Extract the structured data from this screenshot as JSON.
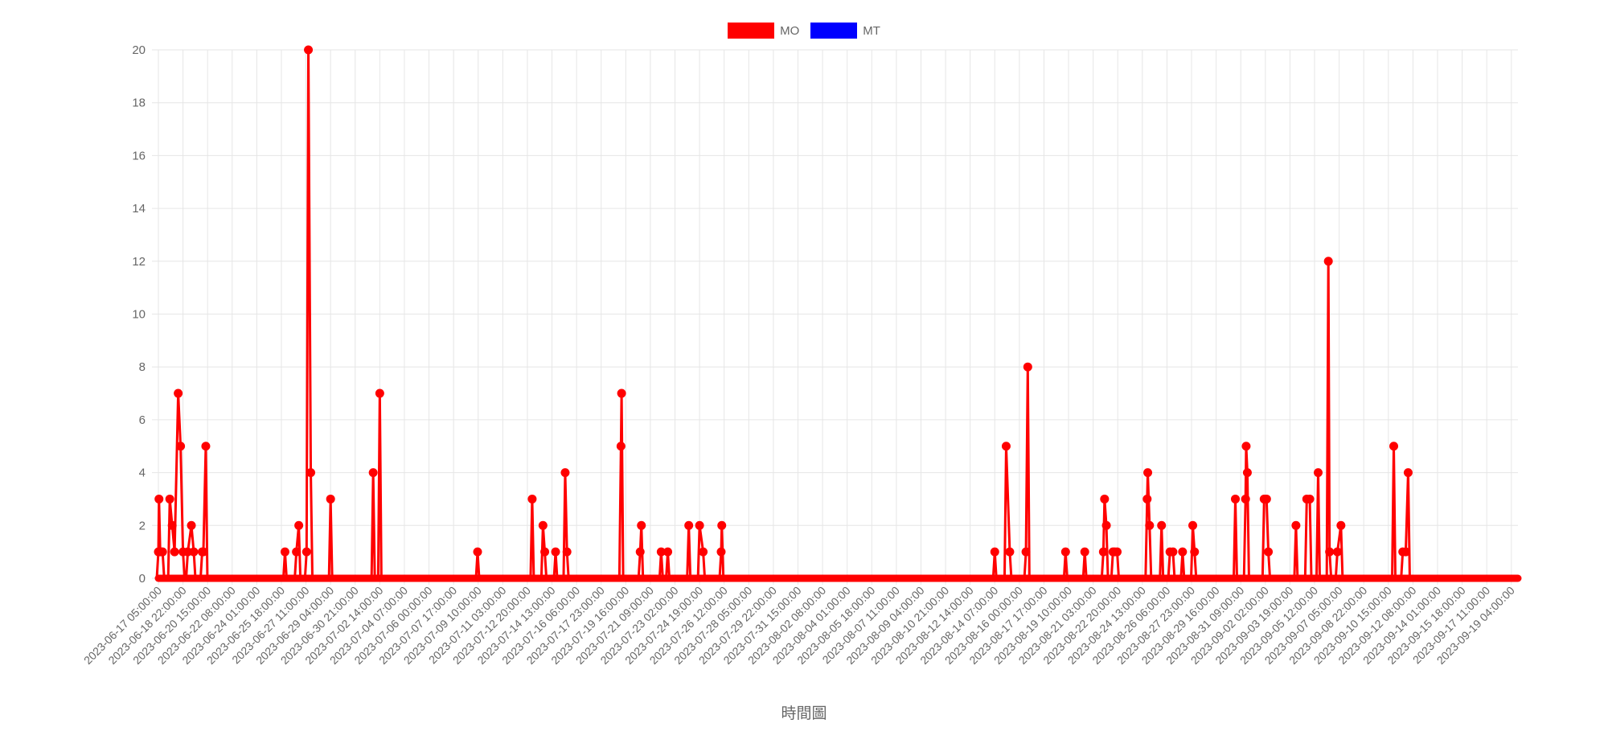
{
  "chart_data": {
    "type": "line",
    "title": "",
    "xlabel": "時間圖",
    "ylabel": "",
    "ylim": [
      0,
      20
    ],
    "yticks": [
      0,
      2,
      4,
      6,
      8,
      10,
      12,
      14,
      16,
      18,
      20
    ],
    "grid": true,
    "legend_position": "top-center",
    "x_start": "2023-06-17 05:00:00",
    "x_end": "2023-09-19 15:00:00",
    "x_tick_labels": [
      "2023-06-17 05:00:00",
      "2023-06-18 22:00:00",
      "2023-06-20 15:00:00",
      "2023-06-22 08:00:00",
      "2023-06-24 01:00:00",
      "2023-06-25 18:00:00",
      "2023-06-27 11:00:00",
      "2023-06-29 04:00:00",
      "2023-06-30 21:00:00",
      "2023-07-02 14:00:00",
      "2023-07-04 07:00:00",
      "2023-07-06 00:00:00",
      "2023-07-07 17:00:00",
      "2023-07-09 10:00:00",
      "2023-07-11 03:00:00",
      "2023-07-12 20:00:00",
      "2023-07-14 13:00:00",
      "2023-07-16 06:00:00",
      "2023-07-17 23:00:00",
      "2023-07-19 16:00:00",
      "2023-07-21 09:00:00",
      "2023-07-23 02:00:00",
      "2023-07-24 19:00:00",
      "2023-07-26 12:00:00",
      "2023-07-28 05:00:00",
      "2023-07-29 22:00:00",
      "2023-07-31 15:00:00",
      "2023-08-02 08:00:00",
      "2023-08-04 01:00:00",
      "2023-08-05 18:00:00",
      "2023-08-07 11:00:00",
      "2023-08-09 04:00:00",
      "2023-08-10 21:00:00",
      "2023-08-12 14:00:00",
      "2023-08-14 07:00:00",
      "2023-08-16 00:00:00",
      "2023-08-17 17:00:00",
      "2023-08-19 10:00:00",
      "2023-08-21 03:00:00",
      "2023-08-22 20:00:00",
      "2023-08-24 13:00:00",
      "2023-08-26 06:00:00",
      "2023-08-27 23:00:00",
      "2023-08-29 16:00:00",
      "2023-08-31 09:00:00",
      "2023-09-02 02:00:00",
      "2023-09-03 19:00:00",
      "2023-09-05 12:00:00",
      "2023-09-07 05:00:00",
      "2023-09-08 22:00:00",
      "2023-09-10 15:00:00",
      "2023-09-12 08:00:00",
      "2023-09-14 01:00:00",
      "2023-09-15 18:00:00",
      "2023-09-17 11:00:00",
      "2023-09-19 04:00:00"
    ],
    "series": [
      {
        "name": "MO",
        "color": "#ff0000",
        "points": [
          {
            "x": "2023-06-17 05:00:00",
            "y": 1
          },
          {
            "x": "2023-06-17 06:00:00",
            "y": 3
          },
          {
            "x": "2023-06-17 08:00:00",
            "y": 1
          },
          {
            "x": "2023-06-17 10:00:00",
            "y": 1
          },
          {
            "x": "2023-06-17 12:00:00",
            "y": 1
          },
          {
            "x": "2023-06-18 00:00:00",
            "y": 3
          },
          {
            "x": "2023-06-18 04:00:00",
            "y": 2
          },
          {
            "x": "2023-06-18 08:00:00",
            "y": 1
          },
          {
            "x": "2023-06-18 14:00:00",
            "y": 7
          },
          {
            "x": "2023-06-18 18:00:00",
            "y": 5
          },
          {
            "x": "2023-06-18 22:00:00",
            "y": 1
          },
          {
            "x": "2023-06-19 06:00:00",
            "y": 1
          },
          {
            "x": "2023-06-19 12:00:00",
            "y": 2
          },
          {
            "x": "2023-06-19 16:00:00",
            "y": 1
          },
          {
            "x": "2023-06-20 06:00:00",
            "y": 1
          },
          {
            "x": "2023-06-20 08:00:00",
            "y": 1
          },
          {
            "x": "2023-06-20 12:00:00",
            "y": 5
          },
          {
            "x": "2023-06-26 00:00:00",
            "y": 1
          },
          {
            "x": "2023-06-26 19:00:00",
            "y": 1
          },
          {
            "x": "2023-06-26 23:00:00",
            "y": 2
          },
          {
            "x": "2023-06-27 12:00:00",
            "y": 1
          },
          {
            "x": "2023-06-27 15:00:00",
            "y": 20
          },
          {
            "x": "2023-06-27 19:00:00",
            "y": 4
          },
          {
            "x": "2023-06-29 04:00:00",
            "y": 3
          },
          {
            "x": "2023-07-02 03:00:00",
            "y": 4
          },
          {
            "x": "2023-07-02 14:00:00",
            "y": 7
          },
          {
            "x": "2023-07-09 09:00:00",
            "y": 1
          },
          {
            "x": "2023-07-13 04:00:00",
            "y": 3
          },
          {
            "x": "2023-07-13 22:00:00",
            "y": 2
          },
          {
            "x": "2023-07-14 01:00:00",
            "y": 1
          },
          {
            "x": "2023-07-14 19:00:00",
            "y": 1
          },
          {
            "x": "2023-07-15 11:00:00",
            "y": 4
          },
          {
            "x": "2023-07-15 14:00:00",
            "y": 1
          },
          {
            "x": "2023-07-19 08:00:00",
            "y": 5
          },
          {
            "x": "2023-07-19 09:00:00",
            "y": 7
          },
          {
            "x": "2023-07-20 16:00:00",
            "y": 1
          },
          {
            "x": "2023-07-20 18:00:00",
            "y": 2
          },
          {
            "x": "2023-07-22 03:00:00",
            "y": 1
          },
          {
            "x": "2023-07-22 14:00:00",
            "y": 1
          },
          {
            "x": "2023-07-24 01:00:00",
            "y": 2
          },
          {
            "x": "2023-07-24 19:00:00",
            "y": 2
          },
          {
            "x": "2023-07-25 01:00:00",
            "y": 1
          },
          {
            "x": "2023-07-26 07:00:00",
            "y": 1
          },
          {
            "x": "2023-07-26 08:00:00",
            "y": 2
          },
          {
            "x": "2023-08-14 07:00:00",
            "y": 1
          },
          {
            "x": "2023-08-15 02:00:00",
            "y": 5
          },
          {
            "x": "2023-08-15 08:00:00",
            "y": 1
          },
          {
            "x": "2023-08-16 11:00:00",
            "y": 1
          },
          {
            "x": "2023-08-16 14:00:00",
            "y": 8
          },
          {
            "x": "2023-08-19 05:00:00",
            "y": 1
          },
          {
            "x": "2023-08-20 13:00:00",
            "y": 1
          },
          {
            "x": "2023-08-21 20:00:00",
            "y": 1
          },
          {
            "x": "2023-08-21 22:00:00",
            "y": 3
          },
          {
            "x": "2023-08-22 01:00:00",
            "y": 2
          },
          {
            "x": "2023-08-22 12:00:00",
            "y": 1
          },
          {
            "x": "2023-08-22 15:00:00",
            "y": 1
          },
          {
            "x": "2023-08-22 19:00:00",
            "y": 1
          },
          {
            "x": "2023-08-24 21:00:00",
            "y": 3
          },
          {
            "x": "2023-08-24 22:00:00",
            "y": 4
          },
          {
            "x": "2023-08-25 01:00:00",
            "y": 2
          },
          {
            "x": "2023-08-25 21:00:00",
            "y": 2
          },
          {
            "x": "2023-08-26 11:00:00",
            "y": 1
          },
          {
            "x": "2023-08-26 16:00:00",
            "y": 1
          },
          {
            "x": "2023-08-27 08:00:00",
            "y": 1
          },
          {
            "x": "2023-08-28 01:00:00",
            "y": 2
          },
          {
            "x": "2023-08-28 04:00:00",
            "y": 1
          },
          {
            "x": "2023-08-31 00:00:00",
            "y": 3
          },
          {
            "x": "2023-08-31 17:00:00",
            "y": 3
          },
          {
            "x": "2023-08-31 18:00:00",
            "y": 5
          },
          {
            "x": "2023-08-31 20:00:00",
            "y": 4
          },
          {
            "x": "2023-09-02 00:00:00",
            "y": 3
          },
          {
            "x": "2023-09-02 04:00:00",
            "y": 3
          },
          {
            "x": "2023-09-02 07:00:00",
            "y": 1
          },
          {
            "x": "2023-09-04 05:00:00",
            "y": 2
          },
          {
            "x": "2023-09-04 23:00:00",
            "y": 3
          },
          {
            "x": "2023-09-05 04:00:00",
            "y": 3
          },
          {
            "x": "2023-09-05 18:00:00",
            "y": 4
          },
          {
            "x": "2023-09-06 11:00:00",
            "y": 12
          },
          {
            "x": "2023-09-06 13:00:00",
            "y": 1
          },
          {
            "x": "2023-09-07 02:00:00",
            "y": 1
          },
          {
            "x": "2023-09-07 08:00:00",
            "y": 2
          },
          {
            "x": "2023-09-11 00:00:00",
            "y": 5
          },
          {
            "x": "2023-09-11 15:00:00",
            "y": 1
          },
          {
            "x": "2023-09-11 20:00:00",
            "y": 1
          },
          {
            "x": "2023-09-12 00:00:00",
            "y": 4
          }
        ]
      },
      {
        "name": "MT",
        "color": "#0000ff",
        "points": []
      }
    ]
  }
}
